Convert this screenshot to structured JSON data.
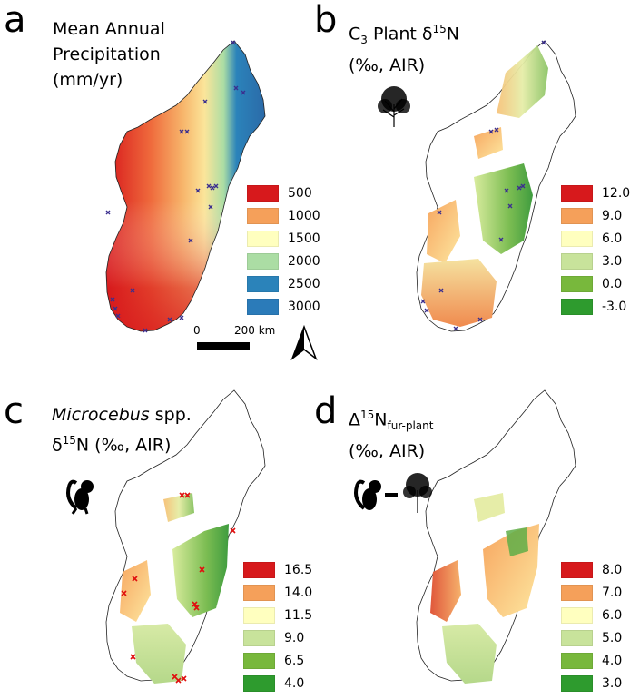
{
  "panels": {
    "a": {
      "letter": "a",
      "title_lines": [
        "Mean Annual",
        "Precipitation",
        "(mm/yr)"
      ],
      "legend": [
        {
          "label": "500",
          "color": "#d7191c"
        },
        {
          "label": "1000",
          "color": "#f5a05a"
        },
        {
          "label": "1500",
          "color": "#ffffbf"
        },
        {
          "label": "2000",
          "color": "#abdda4"
        },
        {
          "label": "2500",
          "color": "#2b83ba"
        },
        {
          "label": "3000",
          "color": "#2b7bb9"
        }
      ],
      "scale_labels": {
        "zero": "0",
        "dist": "200 km"
      }
    },
    "b": {
      "letter": "b",
      "title_c": "C",
      "title_c_sub": "3",
      "title_rest": " Plant δ",
      "title_sup": "15",
      "title_n": "N",
      "title_line2": "(‰, AIR)",
      "legend": [
        {
          "label": "12.0",
          "color": "#d7191c"
        },
        {
          "label": "9.0",
          "color": "#f5a05a"
        },
        {
          "label": "6.0",
          "color": "#ffffbf"
        },
        {
          "label": "3.0",
          "color": "#c8e39b"
        },
        {
          "label": "0.0",
          "color": "#78b83c"
        },
        {
          "label": "-3.0",
          "color": "#2e9b2e"
        }
      ]
    },
    "c": {
      "letter": "c",
      "title_italic": "Microcebus",
      "title_rest": " spp.",
      "title_line2_pre": "δ",
      "title_line2_sup": "15",
      "title_line2_post": "N (‰, AIR)",
      "legend": [
        {
          "label": "16.5",
          "color": "#d7191c"
        },
        {
          "label": "14.0",
          "color": "#f5a05a"
        },
        {
          "label": "11.5",
          "color": "#ffffbf"
        },
        {
          "label": "9.0",
          "color": "#c8e39b"
        },
        {
          "label": "6.5",
          "color": "#78b83c"
        },
        {
          "label": "4.0",
          "color": "#2e9b2e"
        }
      ]
    },
    "d": {
      "letter": "d",
      "title_pre": "Δ",
      "title_sup": "15",
      "title_n": "N",
      "title_sub": "fur-plant",
      "title_line2": "(‰, AIR)",
      "legend": [
        {
          "label": "8.0",
          "color": "#d7191c"
        },
        {
          "label": "7.0",
          "color": "#f5a05a"
        },
        {
          "label": "6.0",
          "color": "#ffffbf"
        },
        {
          "label": "5.0",
          "color": "#c8e39b"
        },
        {
          "label": "4.0",
          "color": "#78b83c"
        },
        {
          "label": "3.0",
          "color": "#2e9b2e"
        }
      ]
    }
  }
}
